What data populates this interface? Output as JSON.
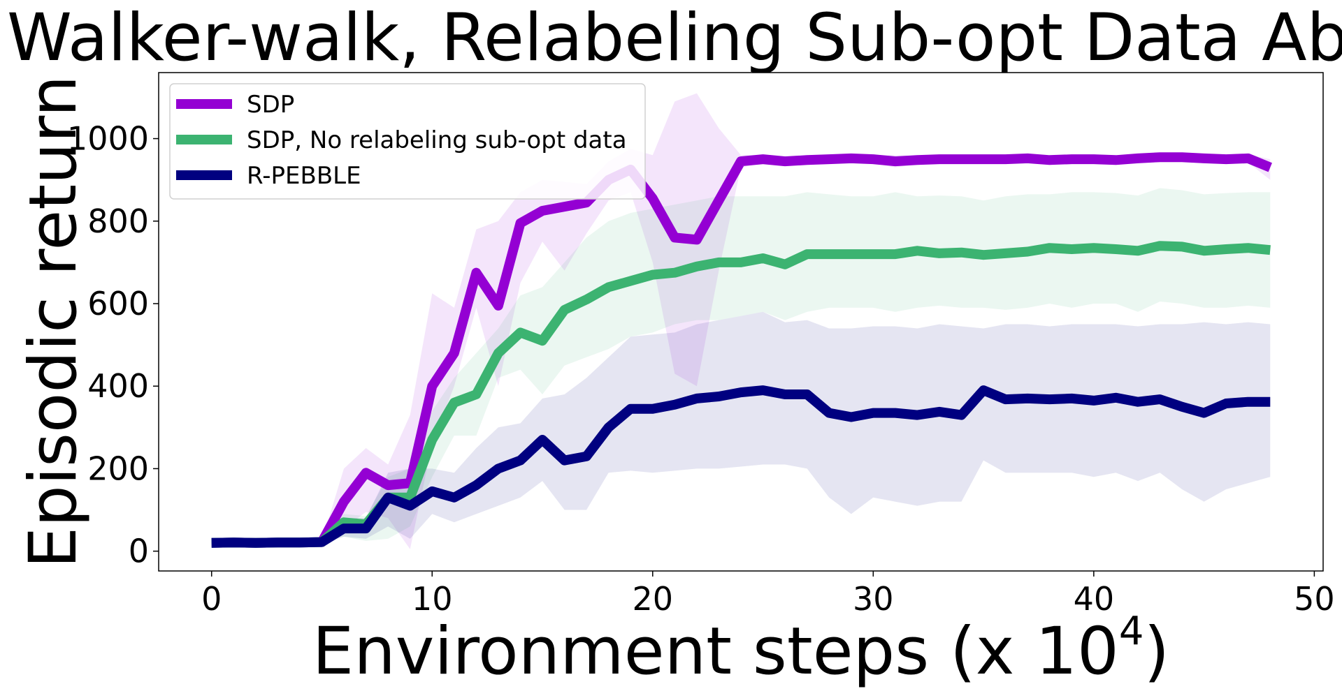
{
  "chart_data": {
    "type": "line",
    "title": "Walker-walk, Relabeling Sub-opt Data Abla",
    "xlabel": "Environment steps (x 10",
    "xlabel_exponent": "4",
    "xlabel_close": ")",
    "ylabel": "Episodic return",
    "xlim": [
      -2.4,
      50.4
    ],
    "ylim": [
      -48,
      1160
    ],
    "xticks": [
      0,
      10,
      20,
      30,
      40,
      50
    ],
    "yticks": [
      0,
      200,
      400,
      600,
      800,
      1000
    ],
    "grid": false,
    "legend_position": "top-left",
    "x": [
      0,
      1,
      2,
      3,
      4,
      5,
      6,
      7,
      8,
      9,
      10,
      11,
      12,
      13,
      14,
      15,
      16,
      17,
      18,
      19,
      20,
      21,
      22,
      23,
      24,
      25,
      26,
      27,
      28,
      29,
      30,
      31,
      32,
      33,
      34,
      35,
      36,
      37,
      38,
      39,
      40,
      41,
      42,
      43,
      44,
      45,
      46,
      47,
      48
    ],
    "series": [
      {
        "name": "SDP",
        "color": "#9400d3",
        "values": [
          20,
          21,
          20,
          21,
          21,
          22,
          120,
          190,
          160,
          165,
          400,
          480,
          675,
          595,
          795,
          825,
          835,
          845,
          900,
          925,
          855,
          760,
          755,
          850,
          945,
          950,
          945,
          948,
          950,
          952,
          950,
          945,
          948,
          950,
          950,
          950,
          950,
          952,
          948,
          950,
          950,
          948,
          952,
          955,
          955,
          952,
          950,
          952,
          930
        ],
        "upper": [
          22,
          23,
          22,
          23,
          23,
          25,
          200,
          250,
          210,
          330,
          625,
          590,
          780,
          800,
          870,
          900,
          895,
          890,
          945,
          975,
          960,
          1090,
          1110,
          1025,
          960,
          960,
          952,
          955,
          958,
          960,
          960,
          960,
          958,
          958,
          960,
          958,
          960,
          962,
          958,
          960,
          960,
          958,
          960,
          962,
          962,
          960,
          960,
          962,
          950
        ],
        "lower": [
          18,
          19,
          18,
          19,
          19,
          19,
          55,
          95,
          80,
          5,
          260,
          400,
          590,
          400,
          650,
          750,
          680,
          770,
          850,
          870,
          700,
          430,
          400,
          680,
          930,
          940,
          938,
          940,
          942,
          945,
          940,
          930,
          938,
          942,
          942,
          942,
          942,
          942,
          938,
          940,
          940,
          938,
          942,
          948,
          948,
          944,
          940,
          942,
          900
        ]
      },
      {
        "name": "SDP, No relabeling sub-opt data",
        "color": "#3cb371",
        "values": [
          20,
          21,
          20,
          21,
          21,
          22,
          70,
          65,
          130,
          130,
          270,
          360,
          380,
          480,
          530,
          510,
          585,
          610,
          640,
          655,
          670,
          675,
          690,
          700,
          700,
          710,
          695,
          720,
          720,
          720,
          720,
          720,
          728,
          722,
          724,
          718,
          722,
          726,
          735,
          732,
          735,
          732,
          728,
          740,
          738,
          728,
          732,
          735,
          730
        ],
        "upper": [
          22,
          23,
          22,
          23,
          23,
          25,
          90,
          85,
          180,
          200,
          340,
          420,
          480,
          540,
          620,
          640,
          700,
          760,
          800,
          820,
          830,
          840,
          850,
          860,
          860,
          860,
          860,
          870,
          865,
          860,
          860,
          870,
          860,
          862,
          860,
          850,
          860,
          865,
          865,
          870,
          870,
          868,
          862,
          880,
          875,
          865,
          868,
          870,
          870
        ],
        "lower": [
          18,
          19,
          18,
          19,
          19,
          19,
          35,
          25,
          30,
          60,
          180,
          280,
          280,
          420,
          440,
          380,
          450,
          470,
          490,
          520,
          530,
          550,
          560,
          560,
          570,
          580,
          560,
          580,
          590,
          590,
          590,
          580,
          590,
          595,
          590,
          590,
          585,
          590,
          600,
          590,
          600,
          600,
          580,
          605,
          600,
          590,
          590,
          595,
          590
        ]
      },
      {
        "name": "R-PEBBLE",
        "color": "#000080",
        "values": [
          20,
          21,
          20,
          21,
          21,
          22,
          55,
          55,
          130,
          110,
          145,
          130,
          160,
          200,
          220,
          270,
          220,
          230,
          300,
          345,
          345,
          355,
          370,
          375,
          385,
          390,
          380,
          380,
          335,
          325,
          335,
          335,
          330,
          338,
          330,
          390,
          368,
          370,
          368,
          370,
          365,
          372,
          362,
          368,
          350,
          335,
          358,
          362,
          362
        ],
        "upper": [
          22,
          23,
          22,
          23,
          23,
          25,
          80,
          80,
          190,
          200,
          200,
          190,
          250,
          300,
          310,
          370,
          380,
          420,
          470,
          520,
          525,
          530,
          550,
          560,
          570,
          580,
          555,
          560,
          540,
          540,
          545,
          545,
          540,
          550,
          545,
          540,
          550,
          550,
          545,
          550,
          550,
          550,
          545,
          550,
          550,
          555,
          550,
          555,
          550
        ],
        "lower": [
          18,
          19,
          18,
          19,
          19,
          19,
          35,
          30,
          60,
          30,
          90,
          70,
          90,
          110,
          130,
          170,
          100,
          100,
          190,
          195,
          190,
          195,
          200,
          200,
          205,
          210,
          210,
          200,
          130,
          90,
          130,
          120,
          110,
          120,
          120,
          220,
          190,
          190,
          190,
          190,
          180,
          190,
          170,
          190,
          150,
          120,
          150,
          165,
          180
        ]
      }
    ]
  }
}
